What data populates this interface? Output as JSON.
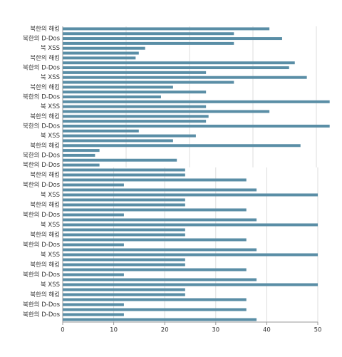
{
  "chart_data": [
    {
      "type": "hbar",
      "color": "#5a8ea6",
      "show_tick_labels": false,
      "grid": true,
      "categories": [
        "북한의 해킹",
        null,
        "북한의 D-Dos",
        null,
        "북 XSS",
        null,
        "북한의 해킹",
        null,
        "북한의 D-Dos",
        null,
        "북 XSS",
        null,
        "북한의 해킹",
        null,
        "북한의 D-Dos",
        null,
        "북 XSS",
        null,
        "북한의 해킹",
        null,
        "북한의 D-Dos",
        null,
        "북 XSS",
        null,
        "북한의 해킹",
        null,
        "북한의 D-Dos",
        null,
        "북한의 D-Dos"
      ],
      "values": [
        3.26,
        2.7,
        3.46,
        2.7,
        1.3,
        1.2,
        1.15,
        3.66,
        3.57,
        2.26,
        3.85,
        2.7,
        1.74,
        2.26,
        1.55,
        4.21,
        2.26,
        3.26,
        2.3,
        2.26,
        4.21,
        1.2,
        2.1,
        1.74,
        3.75,
        0.58,
        0.51,
        1.8,
        0.58
      ],
      "xlim": [
        0,
        4.3
      ],
      "xticks": [
        0,
        1,
        2,
        3,
        4
      ]
    },
    {
      "type": "hbar",
      "color": "#5a8ea6",
      "show_tick_labels": true,
      "grid": true,
      "categories": [
        null,
        "북한의 해킹",
        null,
        "북한의 D-Dos",
        null,
        "북 XSS",
        null,
        "북한의 해킹",
        null,
        "북한의 D-Dos",
        null,
        "북 XSS",
        null,
        "북한의 해킹",
        null,
        "북한의 D-Dos",
        null,
        "북 XSS",
        null,
        "북한의 해킹",
        null,
        "북한의 D-Dos",
        null,
        "북 XSS",
        null,
        "북한의 해킹",
        null,
        "북한의 D-Dos",
        null,
        "북한의 D-Dos",
        null
      ],
      "values": [
        24,
        24,
        36,
        12,
        38,
        50,
        24,
        24,
        36,
        12,
        38,
        50,
        24,
        24,
        36,
        12,
        38,
        50,
        24,
        24,
        36,
        12,
        38,
        50,
        24,
        24,
        36,
        12,
        36,
        12,
        38
      ],
      "xlim": [
        0,
        50
      ],
      "xticks": [
        0,
        10,
        20,
        30,
        40,
        50
      ]
    }
  ]
}
